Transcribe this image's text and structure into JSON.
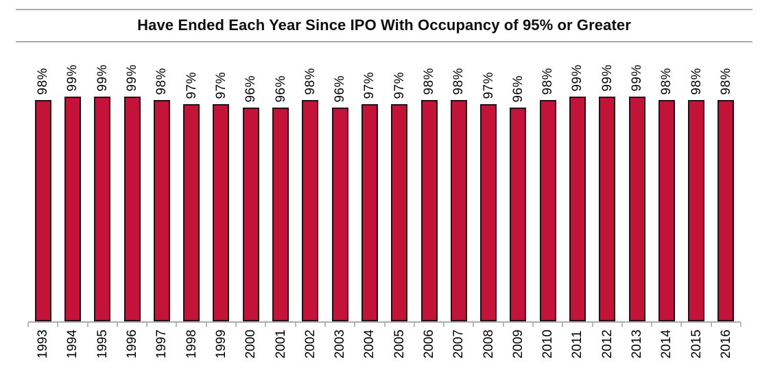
{
  "header": {
    "title": "Have Ended Each Year Since IPO With Occupancy of 95% or Greater"
  },
  "chart_data": {
    "type": "bar",
    "title": "Have Ended Each Year Since IPO With Occupancy of 95% or Greater",
    "categories": [
      "1993",
      "1994",
      "1995",
      "1996",
      "1997",
      "1998",
      "1999",
      "2000",
      "2001",
      "2002",
      "2003",
      "2004",
      "2005",
      "2006",
      "2007",
      "2008",
      "2009",
      "2010",
      "2011",
      "2012",
      "2013",
      "2014",
      "2015",
      "2016"
    ],
    "values": [
      98,
      99,
      99,
      99,
      98,
      97,
      97,
      96,
      96,
      98,
      96,
      97,
      97,
      98,
      98,
      97,
      96,
      98,
      99,
      99,
      99,
      98,
      98,
      98
    ],
    "value_labels": [
      "98%",
      "99%",
      "99%",
      "99%",
      "98%",
      "97%",
      "97%",
      "96%",
      "96%",
      "98%",
      "96%",
      "97%",
      "97%",
      "98%",
      "98%",
      "97%",
      "96%",
      "98%",
      "99%",
      "99%",
      "99%",
      "98%",
      "98%",
      "98%"
    ],
    "xlabel": "",
    "ylabel": "",
    "value_suffix": "%",
    "data_label_rotation_degrees": 90,
    "x_label_rotation_degrees": 90,
    "y_axis_shown": false,
    "grid": false,
    "legend_position": "none",
    "bar_color": "#c31338",
    "bar_border_color": "#240f17",
    "axis_color": "#acacac",
    "tick_color": "#b6b6b6",
    "title_rule_color": "#9a9a9a"
  }
}
